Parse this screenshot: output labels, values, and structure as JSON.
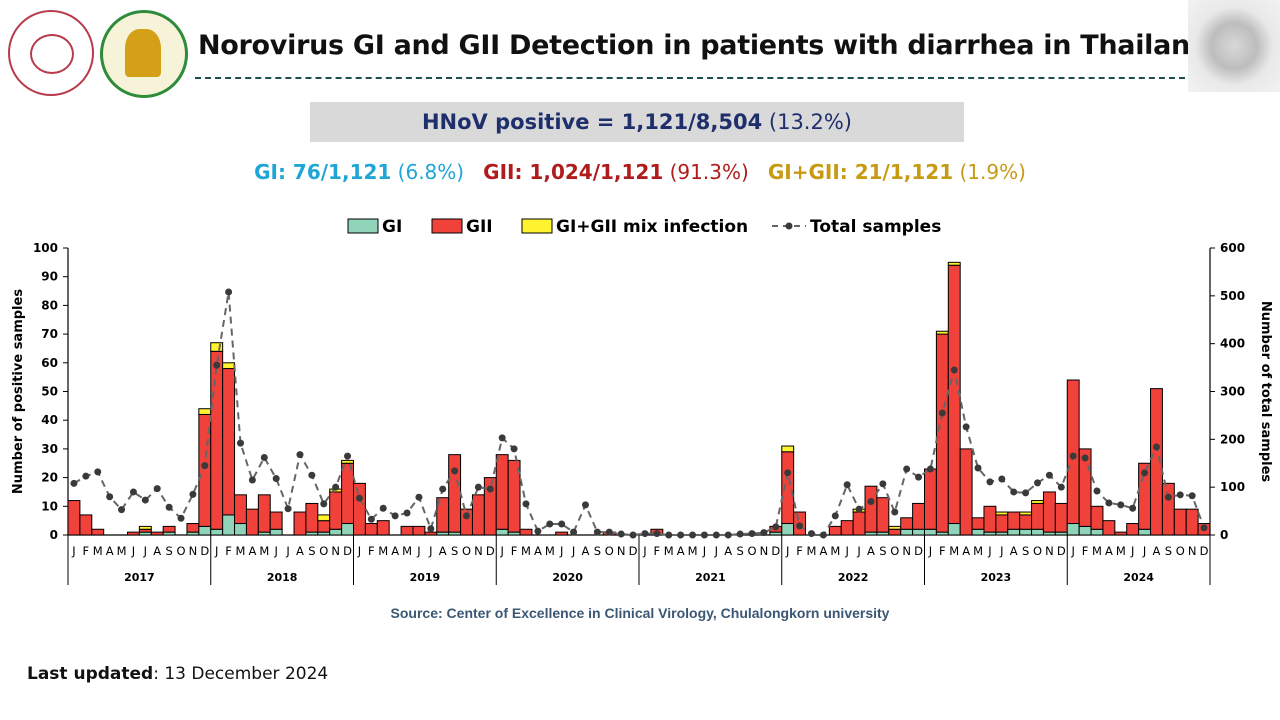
{
  "header": {
    "title": "Norovirus GI and GII Detection in patients with diarrhea in Thailand.",
    "hnov_label": "HNoV positive = 1,121/8,504",
    "hnov_pct": "(13.2%)",
    "breakdown": {
      "gi_label": "GI: 76/1,121",
      "gi_pct": "(6.8%)",
      "gii_label": "GII: 1,024/1,121",
      "gii_pct": "(91.3%)",
      "mix_label": "GI+GII:  21/1,121",
      "mix_pct": "(1.9%)"
    }
  },
  "colors": {
    "gi": "#8fd4b8",
    "gii": "#f0413b",
    "mix": "#fff22e",
    "total": "#555555"
  },
  "chart_data": {
    "type": "bar",
    "stacked": true,
    "ylabel": "Number of positive samples",
    "y2label": "Number of total samples",
    "ylim": [
      0,
      100
    ],
    "y2lim": [
      0,
      600
    ],
    "yticks": [
      "0",
      "10",
      "20",
      "30",
      "40",
      "50",
      "60",
      "70",
      "80",
      "90",
      "100"
    ],
    "y2ticks": [
      "0",
      "100",
      "200",
      "300",
      "400",
      "500",
      "600"
    ],
    "years": [
      "2017",
      "2018",
      "2019",
      "2020",
      "2021",
      "2022",
      "2023",
      "2024"
    ],
    "months": [
      "J",
      "F",
      "M",
      "A",
      "M",
      "J",
      "J",
      "A",
      "S",
      "O",
      "N",
      "D"
    ],
    "legend": [
      "GI",
      "GII",
      "GI+GII mix infection",
      "Total samples"
    ],
    "legend_position": "top-center",
    "series": [
      {
        "name": "GI",
        "axis": "left",
        "values": [
          0,
          0,
          0,
          0,
          0,
          0,
          1,
          0,
          1,
          0,
          1,
          3,
          2,
          7,
          4,
          0,
          1,
          2,
          0,
          0,
          1,
          1,
          2,
          4,
          0,
          0,
          0,
          0,
          0,
          0,
          0,
          1,
          1,
          0,
          0,
          0,
          2,
          1,
          0,
          0,
          0,
          0,
          0,
          0,
          0,
          0,
          0,
          0,
          0,
          0,
          0,
          0,
          0,
          0,
          0,
          0,
          0,
          0,
          0,
          1,
          4,
          0,
          0,
          0,
          0,
          0,
          0,
          1,
          1,
          0,
          2,
          2,
          2,
          1,
          4,
          0,
          2,
          1,
          1,
          2,
          2,
          2,
          1,
          1,
          4,
          3,
          2,
          0,
          0,
          0,
          2,
          0,
          0,
          0,
          0,
          0
        ]
      },
      {
        "name": "GII",
        "axis": "left",
        "values": [
          12,
          7,
          2,
          0,
          0,
          1,
          1,
          1,
          2,
          0,
          3,
          39,
          62,
          51,
          10,
          9,
          13,
          6,
          0,
          8,
          10,
          4,
          13,
          21,
          18,
          4,
          5,
          0,
          3,
          3,
          1,
          12,
          27,
          9,
          14,
          20,
          26,
          25,
          2,
          0,
          0,
          1,
          0,
          0,
          0,
          1,
          0,
          0,
          0,
          2,
          0,
          0,
          0,
          0,
          0,
          0,
          0,
          0,
          0,
          2,
          25,
          8,
          0,
          0,
          3,
          5,
          8,
          16,
          12,
          2,
          4,
          9,
          21,
          69,
          90,
          30,
          4,
          9,
          6,
          6,
          5,
          9,
          14,
          10,
          50,
          27,
          8,
          5,
          1,
          4,
          23,
          51,
          18,
          9,
          9,
          4
        ]
      },
      {
        "name": "GI+GII mix infection",
        "axis": "left",
        "values": [
          0,
          0,
          0,
          0,
          0,
          0,
          1,
          0,
          0,
          0,
          0,
          2,
          3,
          2,
          0,
          0,
          0,
          0,
          0,
          0,
          0,
          2,
          1,
          1,
          0,
          0,
          0,
          0,
          0,
          0,
          0,
          0,
          0,
          0,
          0,
          0,
          0,
          0,
          0,
          0,
          0,
          0,
          0,
          0,
          0,
          0,
          0,
          0,
          0,
          0,
          0,
          0,
          0,
          0,
          0,
          0,
          0,
          0,
          0,
          0,
          2,
          0,
          0,
          0,
          0,
          0,
          1,
          0,
          0,
          1,
          0,
          0,
          0,
          1,
          1,
          0,
          0,
          0,
          1,
          0,
          1,
          1,
          0,
          0,
          0,
          0,
          0,
          0,
          0,
          0,
          0,
          0,
          0,
          0,
          0,
          0
        ]
      },
      {
        "name": "Total samples",
        "axis": "right",
        "type": "line",
        "values": [
          108,
          123,
          132,
          80,
          53,
          90,
          73,
          97,
          58,
          35,
          85,
          145,
          355,
          508,
          192,
          115,
          162,
          118,
          55,
          168,
          125,
          65,
          100,
          165,
          77,
          33,
          56,
          40,
          46,
          79,
          13,
          96,
          134,
          40,
          100,
          96,
          203,
          180,
          65,
          8,
          23,
          23,
          6,
          63,
          6,
          6,
          2,
          0,
          3,
          3,
          0,
          0,
          0,
          0,
          0,
          0,
          2,
          3,
          5,
          17,
          130,
          19,
          3,
          0,
          40,
          105,
          54,
          70,
          107,
          48,
          138,
          121,
          138,
          255,
          345,
          226,
          140,
          111,
          117,
          90,
          88,
          109,
          125,
          100,
          165,
          161,
          92,
          67,
          63,
          56,
          130,
          184,
          79,
          84,
          82,
          15
        ]
      }
    ]
  },
  "footer": {
    "source": "Source: Center of Excellence in Clinical Virology, Chulalongkorn university",
    "updated_label": "Last updated",
    "updated_value": ": 13 December 2024"
  }
}
